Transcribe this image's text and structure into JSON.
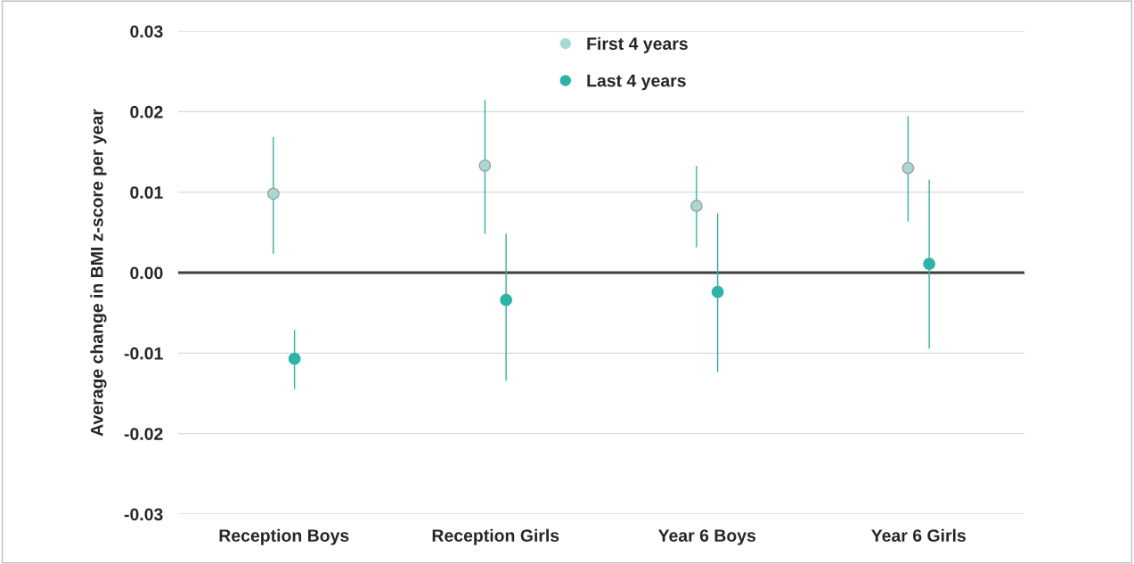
{
  "chart_data": {
    "type": "scatter",
    "ylabel": "Average change in BMI z-score per year",
    "categories": [
      "Reception Boys",
      "Reception Girls",
      "Year 6 Boys",
      "Year 6 Girls"
    ],
    "series": [
      {
        "name": "First 4 years",
        "color": "#a8d8d2",
        "values": [
          0.0098,
          0.0133,
          0.0083,
          0.013
        ],
        "errors": [
          [
            0.0024,
            0.0168
          ],
          [
            0.0049,
            0.0214
          ],
          [
            0.0032,
            0.0132
          ],
          [
            0.0064,
            0.0194
          ]
        ]
      },
      {
        "name": "Last 4 years",
        "color": "#2bb5a6",
        "values": [
          -0.0107,
          -0.0034,
          -0.0024,
          0.0011
        ],
        "errors": [
          [
            -0.0144,
            -0.0072
          ],
          [
            -0.0134,
            0.0048
          ],
          [
            -0.0123,
            0.0073
          ],
          [
            -0.0094,
            0.0115
          ]
        ]
      }
    ],
    "ylim": [
      -0.03,
      0.03
    ],
    "yticks": [
      {
        "value": -0.03,
        "label": "-0.03"
      },
      {
        "value": -0.02,
        "label": "-0.02"
      },
      {
        "value": -0.01,
        "label": "-0.01"
      },
      {
        "value": 0,
        "label": "0.00"
      },
      {
        "value": 0.01,
        "label": "0.01"
      },
      {
        "value": 0.02,
        "label": "0.02"
      },
      {
        "value": 0.03,
        "label": "0.03"
      }
    ],
    "ref_lines": [
      {
        "axis": "y",
        "value": 0,
        "color": "#404040"
      }
    ],
    "grid": "y",
    "legend": "top",
    "marker": "circle"
  }
}
